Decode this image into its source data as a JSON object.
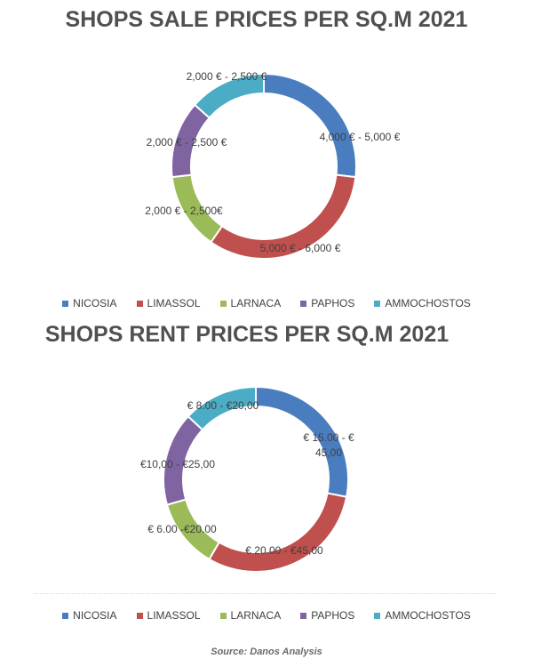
{
  "chart_data": [
    {
      "type": "pie",
      "title": "SHOPS SALE PRICES PER SQ.M 2021",
      "categories": [
        "NICOSIA",
        "LIMASSOL",
        "LARNACA",
        "PAPHOS",
        "AMMOCHOSTOS"
      ],
      "values": [
        4500,
        5500,
        2250,
        2250,
        2250
      ],
      "data_labels": [
        "4,000 € - 5,000 €",
        "5,000 € - 6,000 €",
        "2,000 € - 2,500€",
        "2,000 € - 2,500 €",
        "2,000 € - 2,500 €"
      ],
      "colors": [
        "#4a7dbf",
        "#c0504d",
        "#9bbb59",
        "#8064a2",
        "#4bacc6"
      ],
      "donut": true,
      "legend": "bottom"
    },
    {
      "type": "pie",
      "title": "SHOPS RENT PRICES PER SQ.M 2021",
      "categories": [
        "NICOSIA",
        "LIMASSOL",
        "LARNACA",
        "PAPHOS",
        "AMMOCHOSTOS"
      ],
      "values": [
        30,
        32.5,
        13,
        17.5,
        14
      ],
      "data_labels": [
        "€ 15.00 - € 45,00",
        "€ 20.00 - €45,00",
        "€ 6.00 -€20.00",
        "€10,00 - €25,00",
        "€ 8.00 - €20,00"
      ],
      "colors": [
        "#4a7dbf",
        "#c0504d",
        "#9bbb59",
        "#8064a2",
        "#4bacc6"
      ],
      "donut": true,
      "legend": "bottom"
    }
  ],
  "source": "Source: Danos Analysis"
}
